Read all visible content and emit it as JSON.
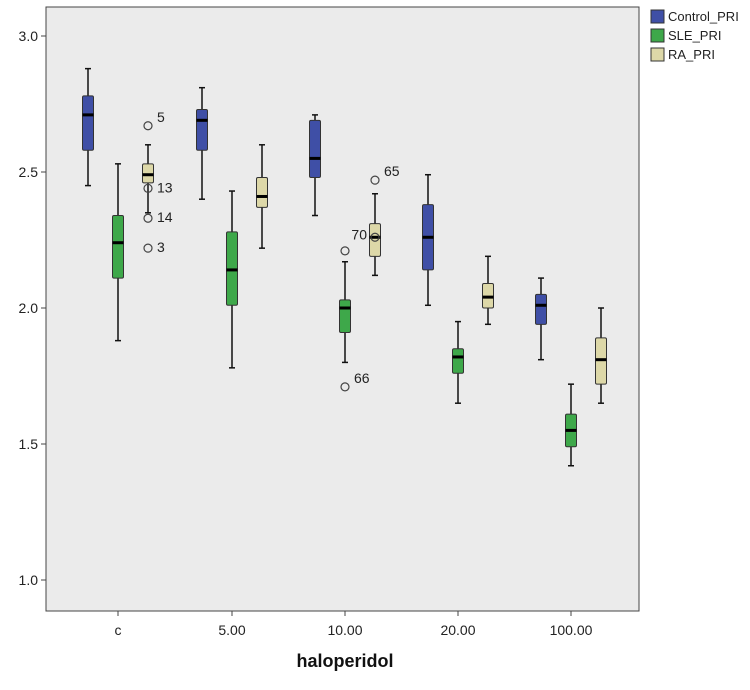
{
  "chart_data": {
    "type": "boxplot",
    "title": "",
    "xlabel": "haloperidol",
    "ylabel": "",
    "ylim": [
      0.9,
      3.1
    ],
    "yticks": [
      1.0,
      1.5,
      2.0,
      2.5,
      3.0
    ],
    "ytick_labels": [
      "1.0",
      "1.5",
      "2.0",
      "2.5",
      "3.0"
    ],
    "categories": [
      "c",
      "5.00",
      "10.00",
      "20.00",
      "100.00"
    ],
    "legend_position": "top-right",
    "colors": {
      "plot_background": "#ebebeb",
      "Control_PRI": "#3f4fa6",
      "SLE_PRI": "#3ea84a",
      "RA_PRI": "#ddd8a8"
    },
    "series": [
      {
        "name": "Control_PRI",
        "color": "#3f4fa6",
        "boxes": [
          {
            "whisker_low": 2.45,
            "q1": 2.58,
            "median": 2.71,
            "q3": 2.78,
            "whisker_high": 2.88,
            "outliers": []
          },
          {
            "whisker_low": 2.4,
            "q1": 2.58,
            "median": 2.69,
            "q3": 2.73,
            "whisker_high": 2.81,
            "outliers": []
          },
          {
            "whisker_low": 2.34,
            "q1": 2.48,
            "median": 2.55,
            "q3": 2.69,
            "whisker_high": 2.71,
            "outliers": []
          },
          {
            "whisker_low": 2.01,
            "q1": 2.14,
            "median": 2.26,
            "q3": 2.38,
            "whisker_high": 2.49,
            "outliers": []
          },
          {
            "whisker_low": 1.81,
            "q1": 1.94,
            "median": 2.01,
            "q3": 2.05,
            "whisker_high": 2.11,
            "outliers": []
          }
        ]
      },
      {
        "name": "SLE_PRI",
        "color": "#3ea84a",
        "boxes": [
          {
            "whisker_low": 1.88,
            "q1": 2.11,
            "median": 2.24,
            "q3": 2.34,
            "whisker_high": 2.53,
            "outliers": []
          },
          {
            "whisker_low": 1.78,
            "q1": 2.01,
            "median": 2.14,
            "q3": 2.28,
            "whisker_high": 2.43,
            "outliers": []
          },
          {
            "whisker_low": 1.8,
            "q1": 1.91,
            "median": 2.0,
            "q3": 2.03,
            "whisker_high": 2.17,
            "outliers": [
              {
                "value": 2.21,
                "label": ""
              },
              {
                "value": 1.71,
                "label": "66"
              }
            ]
          },
          {
            "whisker_low": 1.65,
            "q1": 1.76,
            "median": 1.82,
            "q3": 1.85,
            "whisker_high": 1.95,
            "outliers": []
          },
          {
            "whisker_low": 1.42,
            "q1": 1.49,
            "median": 1.55,
            "q3": 1.61,
            "whisker_high": 1.72,
            "outliers": []
          }
        ]
      },
      {
        "name": "RA_PRI",
        "color": "#ddd8a8",
        "boxes": [
          {
            "whisker_low": 2.35,
            "q1": 2.46,
            "median": 2.49,
            "q3": 2.53,
            "whisker_high": 2.6,
            "outliers": [
              {
                "value": 2.67,
                "label": "5"
              },
              {
                "value": 2.44,
                "label": "13"
              },
              {
                "value": 2.33,
                "label": "14"
              },
              {
                "value": 2.22,
                "label": "3"
              }
            ]
          },
          {
            "whisker_low": 2.22,
            "q1": 2.37,
            "median": 2.41,
            "q3": 2.48,
            "whisker_high": 2.6,
            "outliers": []
          },
          {
            "whisker_low": 2.12,
            "q1": 2.19,
            "median": 2.26,
            "q3": 2.31,
            "whisker_high": 2.42,
            "outliers": [
              {
                "value": 2.47,
                "label": "65"
              },
              {
                "value": 2.26,
                "label": "70"
              }
            ]
          },
          {
            "whisker_low": 1.94,
            "q1": 2.0,
            "median": 2.04,
            "q3": 2.09,
            "whisker_high": 2.19,
            "outliers": []
          },
          {
            "whisker_low": 1.65,
            "q1": 1.72,
            "median": 1.81,
            "q3": 1.89,
            "whisker_high": 2.0,
            "outliers": []
          }
        ]
      }
    ]
  }
}
